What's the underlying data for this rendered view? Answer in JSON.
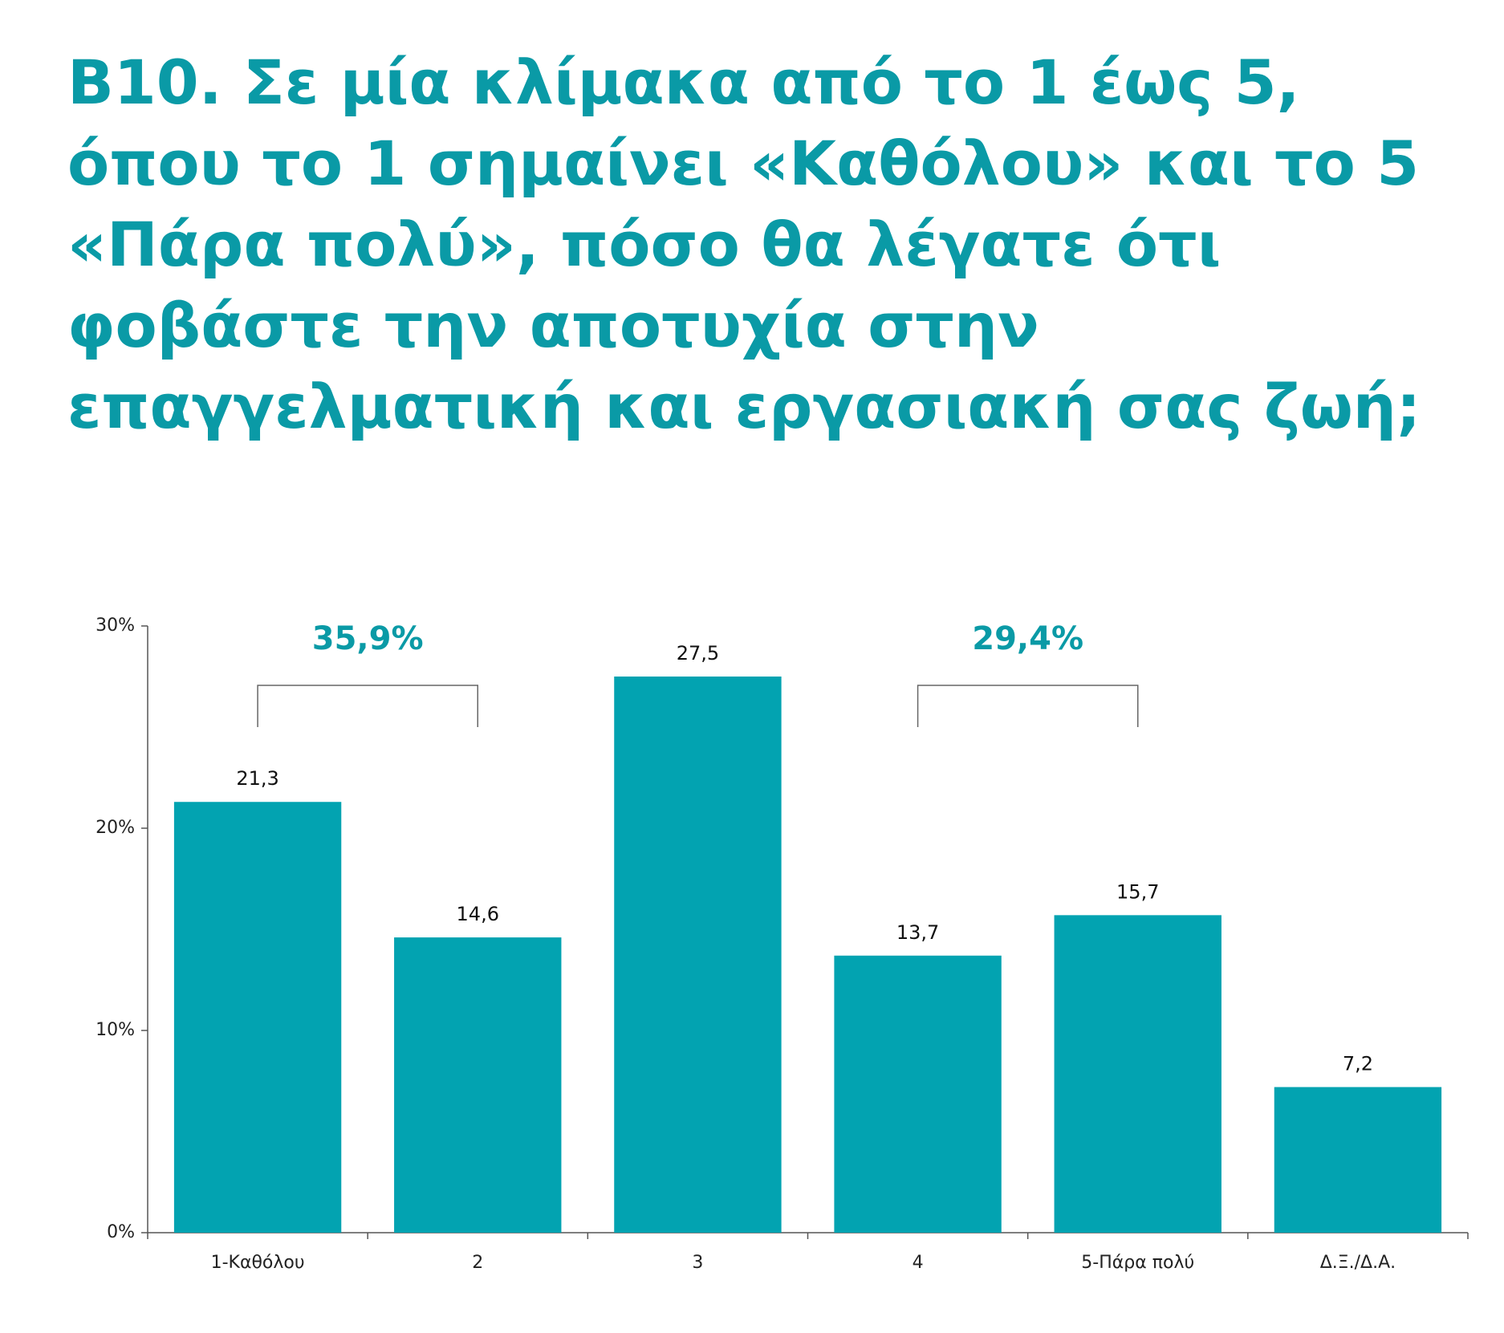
{
  "chart_data": {
    "type": "bar",
    "title": "B10. Σε μία κλίμακα από το 1 έως 5, όπου το 1 σημαίνει «Καθόλου» και το 5 «Πάρα πολύ», πόσο θα λέγατε ότι φοβάστε την αποτυχία στην επαγγελματική και εργασιακή σας ζωή;",
    "categories": [
      "1-Καθόλου",
      "2",
      "3",
      "4",
      "5-Πάρα πολύ",
      "Δ.Ξ./Δ.Α."
    ],
    "values": [
      21.3,
      14.6,
      27.5,
      13.7,
      15.7,
      7.2
    ],
    "value_labels": [
      "21,3",
      "14,6",
      "27,5",
      "13,7",
      "15,7",
      "7,2"
    ],
    "color": "#02a3b1",
    "ylim": [
      0,
      30
    ],
    "yticks": [
      {
        "value": 0,
        "label": "0%"
      },
      {
        "value": 10,
        "label": "10%"
      },
      {
        "value": 20,
        "label": "20%"
      },
      {
        "value": 30,
        "label": "30%"
      }
    ],
    "annotations": [
      {
        "value": 35.9,
        "label": "35,9%"
      },
      {
        "value": 29.4,
        "label": "29,4%"
      }
    ]
  }
}
